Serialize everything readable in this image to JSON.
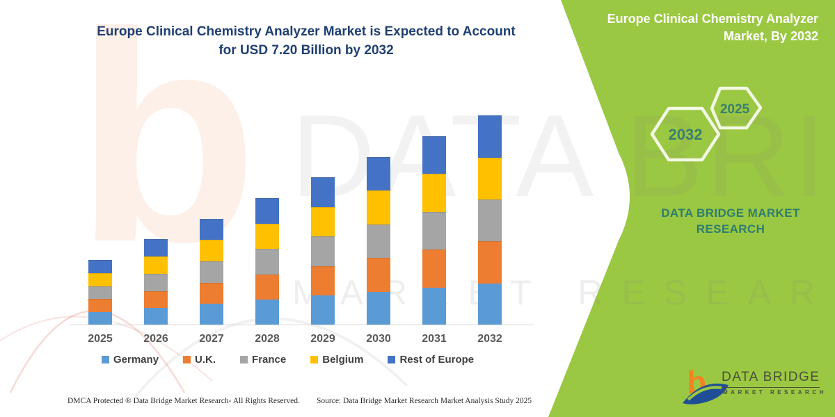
{
  "title": {
    "line1": "Europe Clinical Chemistry Analyzer Market is Expected to Account",
    "line2": "for USD 7.20 Billion by 2032"
  },
  "panel": {
    "title_line1": "Europe Clinical Chemistry Analyzer",
    "title_line2": "Market, By 2032",
    "bg_color": "#9bc843",
    "text_color": "#2e7d6e",
    "hexagons": [
      {
        "label": "2032"
      },
      {
        "label": "2025"
      }
    ],
    "brand_line1": "DATA BRIDGE MARKET",
    "brand_line2": "RESEARCH"
  },
  "logo": {
    "name": "DATA BRIDGE",
    "sub": "MARKET RESEARCH",
    "b_color": "#f58220",
    "swoosh_color": "#1f4e96"
  },
  "chart_data": {
    "type": "bar",
    "stacked": true,
    "unit": "USD Billion",
    "categories": [
      "2025",
      "2026",
      "2027",
      "2028",
      "2029",
      "2030",
      "2031",
      "2032"
    ],
    "series": [
      {
        "name": "Germany",
        "color": "#5B9BD5",
        "values": [
          0.432,
          0.576,
          0.72,
          0.864,
          1.008,
          1.152,
          1.296,
          1.44
        ]
      },
      {
        "name": "U.K.",
        "color": "#ED7D31",
        "values": [
          0.432,
          0.576,
          0.72,
          0.864,
          1.008,
          1.152,
          1.296,
          1.44
        ]
      },
      {
        "name": "France",
        "color": "#A5A5A5",
        "values": [
          0.432,
          0.576,
          0.72,
          0.864,
          1.008,
          1.152,
          1.296,
          1.44
        ]
      },
      {
        "name": "Belgium",
        "color": "#FFC000",
        "values": [
          0.432,
          0.576,
          0.72,
          0.864,
          1.008,
          1.152,
          1.296,
          1.44
        ]
      },
      {
        "name": "Rest of Europe",
        "color": "#4472C4",
        "values": [
          0.432,
          0.576,
          0.72,
          0.864,
          1.008,
          1.152,
          1.296,
          1.44
        ]
      }
    ],
    "totals": [
      2.16,
      2.88,
      3.6,
      4.32,
      5.04,
      5.76,
      6.48,
      7.2
    ],
    "ylim": [
      0,
      7.5
    ],
    "gridlines": false,
    "value_labels": false,
    "legend_position": "bottom"
  },
  "watermarks": {
    "big_letter": "b",
    "brand": "DATA BRIDGE",
    "research": "MARKET RESEARCH"
  },
  "footer": {
    "left": "DMCA Protected ® Data Bridge Market Research-  All Rights Reserved.",
    "right": "Source: Data Bridge Market Research  Market Analysis Study 2025"
  }
}
